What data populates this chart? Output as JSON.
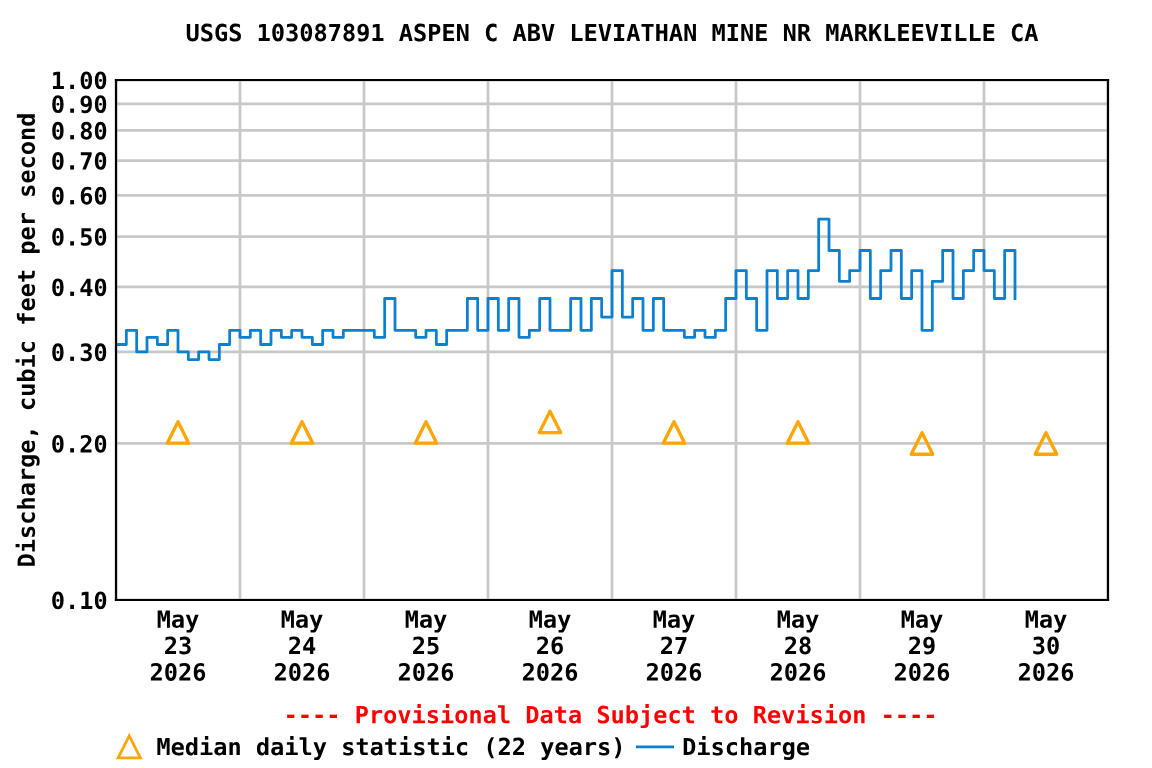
{
  "chart_data": {
    "type": "step",
    "title": "USGS 103087891 ASPEN C ABV LEVIATHAN MINE NR MARKLEEVILLE CA",
    "ylabel": "Discharge, cubic feet per second",
    "log": "y",
    "grid": true,
    "legend": "bottom",
    "annotations": [
      "---- Provisional Data Subject to Revision ----"
    ],
    "xlim": [
      "2026-05-23T00:00",
      "2026-05-31T00:00"
    ],
    "xticks": [
      {
        "value": "2026-05-23T00:00",
        "label": null
      },
      {
        "value": "2026-05-23T12:00",
        "label": "May\n23\n2026"
      },
      {
        "value": "2026-05-24T00:00",
        "label": null
      },
      {
        "value": "2026-05-24T12:00",
        "label": "May\n24\n2026"
      },
      {
        "value": "2026-05-25T00:00",
        "label": null
      },
      {
        "value": "2026-05-25T12:00",
        "label": "May\n25\n2026"
      },
      {
        "value": "2026-05-26T00:00",
        "label": null
      },
      {
        "value": "2026-05-26T12:00",
        "label": "May\n26\n2026"
      },
      {
        "value": "2026-05-27T00:00",
        "label": null
      },
      {
        "value": "2026-05-27T12:00",
        "label": "May\n27\n2026"
      },
      {
        "value": "2026-05-28T00:00",
        "label": null
      },
      {
        "value": "2026-05-28T12:00",
        "label": "May\n28\n2026"
      },
      {
        "value": "2026-05-29T00:00",
        "label": null
      },
      {
        "value": "2026-05-29T12:00",
        "label": "May\n29\n2026"
      },
      {
        "value": "2026-05-30T00:00",
        "label": null
      },
      {
        "value": "2026-05-30T12:00",
        "label": "May\n30\n2026"
      },
      {
        "value": "2026-05-31T00:00",
        "label": null
      }
    ],
    "ylim": [
      0.1,
      1.0
    ],
    "yticks": [
      {
        "value": 0.1,
        "label": "0.10"
      },
      {
        "value": 0.2,
        "label": "0.20"
      },
      {
        "value": 0.3,
        "label": "0.30"
      },
      {
        "value": 0.4,
        "label": "0.40"
      },
      {
        "value": 0.5,
        "label": "0.50"
      },
      {
        "value": 0.6,
        "label": "0.60"
      },
      {
        "value": 0.7,
        "label": "0.70"
      },
      {
        "value": 0.8,
        "label": "0.80"
      },
      {
        "value": 0.9,
        "label": "0.90"
      },
      {
        "value": 1.0,
        "label": "1.00"
      }
    ],
    "series": [
      {
        "name": "Median daily statistic (22 years)",
        "type": "scatter",
        "marker": "triangle",
        "color": "#ffa500",
        "x": [
          "2026-05-23T12:00",
          "2026-05-24T12:00",
          "2026-05-25T12:00",
          "2026-05-26T12:00",
          "2026-05-27T12:00",
          "2026-05-28T12:00",
          "2026-05-29T12:00",
          "2026-05-30T12:00"
        ],
        "values": [
          0.21,
          0.21,
          0.21,
          0.22,
          0.21,
          0.21,
          0.2,
          0.2
        ]
      },
      {
        "name": "Discharge",
        "color": "#0a80d0",
        "x": [
          "2026-05-23T00:00",
          "2026-05-23T02:00",
          "2026-05-23T04:00",
          "2026-05-23T06:00",
          "2026-05-23T08:00",
          "2026-05-23T10:00",
          "2026-05-23T12:00",
          "2026-05-23T14:00",
          "2026-05-23T16:00",
          "2026-05-23T18:00",
          "2026-05-23T20:00",
          "2026-05-23T22:00",
          "2026-05-24T00:00",
          "2026-05-24T02:00",
          "2026-05-24T04:00",
          "2026-05-24T06:00",
          "2026-05-24T08:00",
          "2026-05-24T10:00",
          "2026-05-24T12:00",
          "2026-05-24T14:00",
          "2026-05-24T16:00",
          "2026-05-24T18:00",
          "2026-05-24T20:00",
          "2026-05-24T22:00",
          "2026-05-25T00:00",
          "2026-05-25T02:00",
          "2026-05-25T04:00",
          "2026-05-25T06:00",
          "2026-05-25T08:00",
          "2026-05-25T10:00",
          "2026-05-25T12:00",
          "2026-05-25T14:00",
          "2026-05-25T16:00",
          "2026-05-25T18:00",
          "2026-05-25T20:00",
          "2026-05-25T22:00",
          "2026-05-26T00:00",
          "2026-05-26T02:00",
          "2026-05-26T04:00",
          "2026-05-26T06:00",
          "2026-05-26T08:00",
          "2026-05-26T10:00",
          "2026-05-26T12:00",
          "2026-05-26T14:00",
          "2026-05-26T16:00",
          "2026-05-26T18:00",
          "2026-05-26T20:00",
          "2026-05-26T22:00",
          "2026-05-27T00:00",
          "2026-05-27T02:00",
          "2026-05-27T04:00",
          "2026-05-27T06:00",
          "2026-05-27T08:00",
          "2026-05-27T10:00",
          "2026-05-27T12:00",
          "2026-05-27T14:00",
          "2026-05-27T16:00",
          "2026-05-27T18:00",
          "2026-05-27T20:00",
          "2026-05-27T22:00",
          "2026-05-28T00:00",
          "2026-05-28T02:00",
          "2026-05-28T04:00",
          "2026-05-28T06:00",
          "2026-05-28T08:00",
          "2026-05-28T10:00",
          "2026-05-28T12:00",
          "2026-05-28T14:00",
          "2026-05-28T16:00",
          "2026-05-28T18:00",
          "2026-05-28T20:00",
          "2026-05-28T22:00",
          "2026-05-29T00:00",
          "2026-05-29T02:00",
          "2026-05-29T04:00",
          "2026-05-29T06:00",
          "2026-05-29T08:00",
          "2026-05-29T10:00",
          "2026-05-29T12:00",
          "2026-05-29T14:00",
          "2026-05-29T16:00",
          "2026-05-29T18:00",
          "2026-05-29T20:00",
          "2026-05-29T22:00",
          "2026-05-30T00:00",
          "2026-05-30T02:00",
          "2026-05-30T04:00",
          "2026-05-30T06:00"
        ],
        "values": [
          0.31,
          0.33,
          0.3,
          0.32,
          0.31,
          0.33,
          0.3,
          0.29,
          0.3,
          0.29,
          0.31,
          0.33,
          0.32,
          0.33,
          0.31,
          0.33,
          0.32,
          0.33,
          0.32,
          0.31,
          0.33,
          0.32,
          0.33,
          0.33,
          0.33,
          0.32,
          0.38,
          0.33,
          0.33,
          0.32,
          0.33,
          0.31,
          0.33,
          0.33,
          0.38,
          0.33,
          0.38,
          0.33,
          0.38,
          0.32,
          0.33,
          0.38,
          0.33,
          0.33,
          0.38,
          0.33,
          0.38,
          0.35,
          0.43,
          0.35,
          0.38,
          0.33,
          0.38,
          0.33,
          0.33,
          0.32,
          0.33,
          0.32,
          0.33,
          0.38,
          0.43,
          0.38,
          0.33,
          0.43,
          0.38,
          0.43,
          0.38,
          0.43,
          0.54,
          0.47,
          0.41,
          0.43,
          0.47,
          0.38,
          0.43,
          0.47,
          0.38,
          0.43,
          0.33,
          0.41,
          0.47,
          0.38,
          0.43,
          0.47,
          0.43,
          0.38,
          0.47,
          0.38
        ]
      }
    ]
  }
}
